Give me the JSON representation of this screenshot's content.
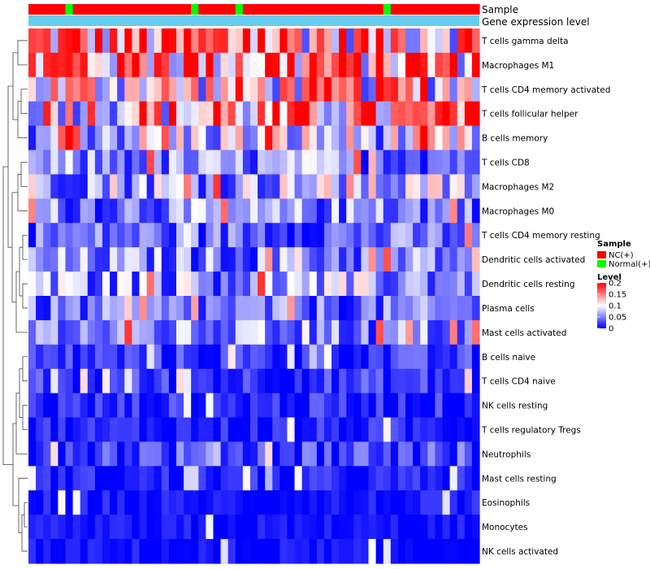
{
  "chart_data": {
    "type": "heatmap",
    "annotation_labels": {
      "sample": "Sample",
      "gene_expression": "Gene expression level"
    },
    "sample_groups": [
      "N",
      "N",
      "N",
      "N",
      "N",
      "T",
      "N",
      "N",
      "N",
      "N",
      "N",
      "N",
      "N",
      "N",
      "N",
      "N",
      "N",
      "N",
      "N",
      "N",
      "N",
      "N",
      "T",
      "N",
      "N",
      "N",
      "N",
      "N",
      "T",
      "N",
      "N",
      "N",
      "N",
      "N",
      "N",
      "N",
      "N",
      "N",
      "N",
      "N",
      "N",
      "N",
      "N",
      "N",
      "N",
      "N",
      "N",
      "N",
      "T",
      "N",
      "N",
      "N",
      "N",
      "N",
      "N",
      "N",
      "N",
      "N",
      "N",
      "N",
      "N"
    ],
    "rows": [
      "T cells gamma delta",
      "Macrophages M1",
      "T cells CD4 memory activated",
      "T cells follicular helper",
      "B cells memory",
      "T cells CD8",
      "Macrophages M2",
      "Macrophages M0",
      "T cells CD4 memory resting",
      "Dendritic cells activated",
      "Dendritic cells resting",
      "Plasma cells",
      "Mast cells activated",
      "B cells naive",
      "T cells CD4 naive",
      "NK cells resting",
      "T cells regulatory  Tregs",
      "Neutrophils",
      "Mast cells resting",
      "Eosinophils",
      "Monocytes",
      "NK cells activated"
    ],
    "legend": {
      "sample_title": "Sample",
      "sample_items": [
        {
          "label": "NC(+)",
          "color": "#ff0000"
        },
        {
          "label": "Normal(+)",
          "color": "#00ff00"
        }
      ],
      "level_title": "Level",
      "level_ticks": [
        "0.2",
        "0.15",
        "0.1",
        "0.05",
        "0"
      ],
      "level_range": [
        0,
        0.2
      ]
    },
    "colors": {
      "low": "#0000ff",
      "mid": "#ffffff",
      "high": "#ff0000",
      "annotation_bar": "#66ccee"
    },
    "value_range": [
      0,
      0.2
    ],
    "num_columns": 61,
    "row_base_values": [
      0.14,
      0.15,
      0.11,
      0.12,
      0.08,
      0.05,
      0.07,
      0.05,
      0.04,
      0.05,
      0.06,
      0.04,
      0.05,
      0.02,
      0.02,
      0.015,
      0.012,
      0.03,
      0.01,
      0.005,
      0.003,
      0.003
    ],
    "title": "",
    "xlabel": "",
    "ylabel": ""
  }
}
